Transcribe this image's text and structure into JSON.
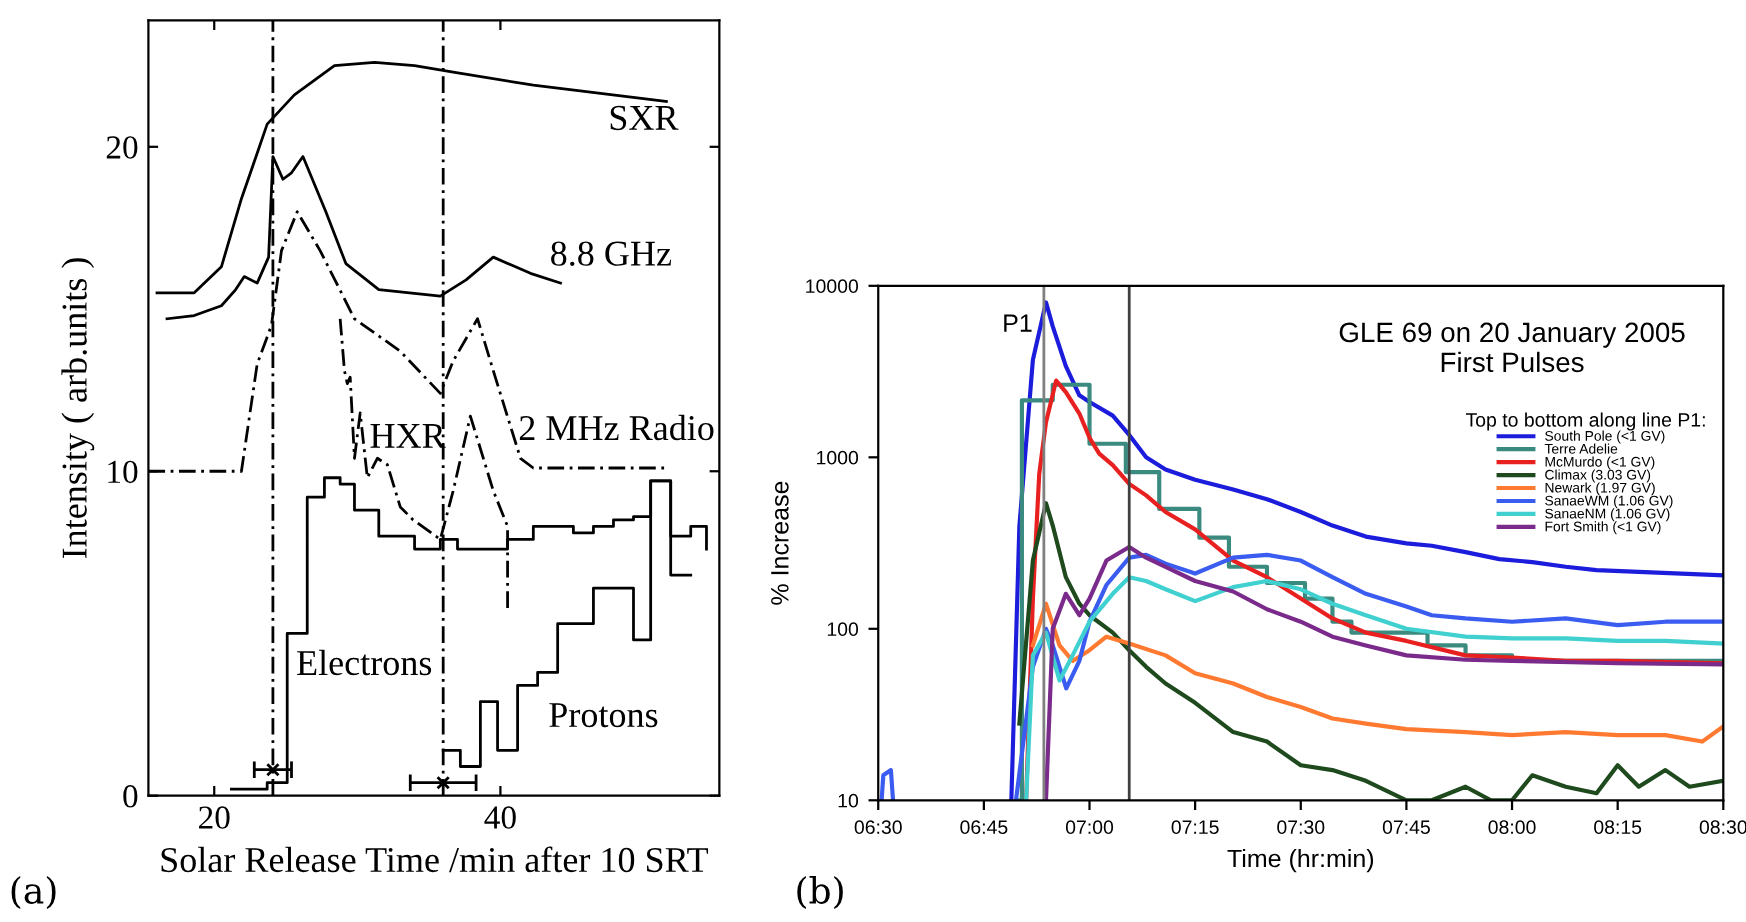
{
  "chart_data": [
    {
      "type": "line",
      "xlabel": "Solar Release Time /min after 10 SRT",
      "ylabel": "Intensity ( arb.units )",
      "xlim": [
        15.4,
        55.3
      ],
      "ylim": [
        0,
        23.9
      ],
      "xticks": [
        20,
        40
      ],
      "yticks": [
        0,
        10,
        20
      ],
      "series": [
        {
          "name": "SXR",
          "color": "#000000",
          "line_style": "solid",
          "x": [
            16.0,
            18.6,
            20.5,
            21.9,
            23.0,
            23.7,
            25.6,
            28.4,
            31.2,
            34.0,
            36.7,
            42.3,
            51.6
          ],
          "values": [
            15.5,
            15.5,
            16.3,
            18.4,
            19.8,
            20.7,
            21.6,
            22.5,
            22.6,
            22.5,
            22.3,
            21.9,
            21.4
          ]
        },
        {
          "name": "8.8 GHz",
          "color": "#000000",
          "line_style": "solid",
          "x": [
            16.7,
            18.6,
            20.5,
            21.5,
            22.1,
            23.0,
            23.8,
            24.1,
            24.8,
            25.4,
            26.2,
            27.8,
            29.2,
            31.5,
            35.8,
            37.6,
            39.5,
            42.1,
            44.2
          ],
          "values": [
            14.7,
            14.8,
            15.1,
            15.6,
            16.0,
            15.8,
            16.6,
            19.7,
            19.0,
            19.2,
            19.7,
            18.0,
            16.4,
            15.6,
            15.4,
            15.9,
            16.6,
            16.1,
            15.8
          ]
        },
        {
          "name": "2 MHz Radio",
          "color": "#000000",
          "line_style": "dashed",
          "x": [
            15.4,
            21.9,
            23.0,
            24.0,
            24.7,
            25.8,
            27.4,
            29.8,
            33.0,
            35.8,
            36.7,
            38.4,
            39.5,
            41.4,
            42.3,
            51.6
          ],
          "values": [
            10.0,
            10.0,
            13.3,
            14.5,
            16.8,
            18.0,
            16.8,
            14.7,
            13.7,
            12.4,
            13.4,
            14.7,
            13.1,
            10.4,
            10.1,
            10.1
          ]
        },
        {
          "name": "HXR",
          "color": "#000000",
          "line_style": "dashed",
          "x": [
            28.8,
            29.1,
            29.3,
            29.5,
            29.8,
            30.2,
            30.7,
            31.4,
            32.1,
            33.0,
            33.9,
            35.8,
            36.7,
            37.9,
            39.5,
            40.5,
            40.5
          ],
          "values": [
            14.7,
            13.1,
            12.7,
            12.9,
            10.4,
            11.8,
            9.8,
            10.4,
            10.2,
            8.9,
            8.5,
            7.9,
            9.4,
            11.7,
            9.4,
            8.3,
            5.7
          ]
        },
        {
          "name": "Electrons",
          "type": "step",
          "color": "#000000",
          "line_style": "solid",
          "x": [
            21.2,
            23.7,
            25.1,
            26.5,
            27.7,
            28.8,
            29.8,
            31.5,
            34.0,
            35.8,
            37.0,
            40.5,
            42.3,
            45.1,
            46.5,
            47.9,
            49.3,
            50.5,
            51.9,
            53.3,
            54.4
          ],
          "values": [
            0.2,
            0.4,
            5.0,
            9.2,
            9.8,
            9.6,
            8.8,
            8.0,
            7.6,
            7.9,
            7.6,
            7.9,
            8.3,
            8.1,
            8.3,
            8.5,
            8.6,
            9.7,
            8.0,
            8.3,
            7.6
          ]
        },
        {
          "name": "Protons",
          "type": "step",
          "color": "#000000",
          "line_style": "solid",
          "x": [
            36.0,
            37.2,
            38.6,
            39.8,
            41.2,
            42.6,
            44.0,
            46.5,
            49.3,
            50.5,
            51.9,
            53.3
          ],
          "values": [
            1.4,
            0.9,
            2.9,
            1.4,
            3.4,
            3.8,
            5.3,
            6.4,
            4.8,
            9.7,
            6.8,
            6.8
          ]
        },
        {
          "type": "scatter",
          "color": "#000000",
          "marker": "cross",
          "x": [
            24.1,
            36.0
          ],
          "values": [
            0.8,
            0.4
          ],
          "xerrors": [
            1.3,
            2.3
          ]
        }
      ],
      "ref_lines": [
        {
          "axis": "x",
          "value": 24.1,
          "line_style": "dashed",
          "color": "#000000"
        },
        {
          "axis": "x",
          "value": 36.0,
          "line_style": "dashed",
          "color": "#000000"
        }
      ],
      "annotations": [
        "(a)"
      ]
    },
    {
      "type": "line",
      "title": "GLE 69 on 20 January 2005\nFirst Pulses",
      "xlabel": "Time (hr:min)",
      "ylabel": "% Increase",
      "log": "y",
      "xlim": [
        6.5,
        8.5
      ],
      "ylim": [
        10,
        10000
      ],
      "xticks": [
        {
          "value": 6.5,
          "label": "06:30"
        },
        {
          "value": 6.75,
          "label": "06:45"
        },
        {
          "value": 7.0,
          "label": "07:00"
        },
        {
          "value": 7.25,
          "label": "07:15"
        },
        {
          "value": 7.5,
          "label": "07:30"
        },
        {
          "value": 7.75,
          "label": "07:45"
        },
        {
          "value": 8.0,
          "label": "08:00"
        },
        {
          "value": 8.25,
          "label": "08:15"
        },
        {
          "value": 8.5,
          "label": "08:30"
        }
      ],
      "yticks": [
        10,
        100,
        1000,
        10000
      ],
      "legend": "top right",
      "legend_title": "Top to bottom along line P1:",
      "series": [
        {
          "name": "South Pole (<1 GV)",
          "color": "#1c1cdc",
          "x": [
            6.815,
            6.834,
            6.866,
            6.897,
            6.913,
            6.944,
            6.976,
            7.0,
            7.055,
            7.094,
            7.134,
            7.18,
            7.25,
            7.34,
            7.42,
            7.5,
            7.575,
            7.654,
            7.75,
            7.81,
            7.89,
            7.97,
            8.048,
            8.127,
            8.2,
            8.3,
            8.5
          ],
          "values": [
            10,
            395,
            3700,
            8000,
            5800,
            3400,
            2300,
            2100,
            1750,
            1350,
            1000,
            850,
            740,
            650,
            570,
            480,
            400,
            345,
            315,
            305,
            280,
            255,
            245,
            230,
            220,
            215,
            205
          ]
        },
        {
          "name": "Terre Adelie",
          "color": "#3a8a80",
          "type": "step",
          "x": [
            6.834,
            6.84,
            6.913,
            7.0,
            7.086,
            7.165,
            7.26,
            7.33,
            7.42,
            7.51,
            7.575,
            7.62,
            7.8,
            7.89,
            8.0,
            8.5
          ],
          "values": [
            10,
            2150,
            2650,
            1200,
            820,
            500,
            340,
            230,
            185,
            150,
            110,
            95,
            80,
            70,
            65,
            65
          ]
        },
        {
          "name": "McMurdo (<1 GV)",
          "color": "#e82020",
          "x": [
            6.85,
            6.866,
            6.881,
            6.897,
            6.921,
            6.944,
            6.976,
            7.0,
            7.023,
            7.055,
            7.094,
            7.134,
            7.18,
            7.25,
            7.34,
            7.42,
            7.5,
            7.575,
            7.654,
            7.75,
            7.89,
            8.0,
            8.127,
            8.25,
            8.5
          ],
          "values": [
            10,
            150,
            800,
            1600,
            2800,
            2400,
            1800,
            1300,
            1050,
            900,
            700,
            600,
            480,
            380,
            250,
            200,
            150,
            115,
            95,
            85,
            70,
            68,
            65,
            65,
            63
          ]
        },
        {
          "name": "Climax (3.03 GV)",
          "color": "#1e4a1e",
          "x": [
            6.834,
            6.866,
            6.897,
            6.913,
            6.944,
            6.976,
            7.0,
            7.055,
            7.094,
            7.134,
            7.18,
            7.25,
            7.34,
            7.42,
            7.5,
            7.575,
            7.654,
            7.75,
            7.81,
            7.89,
            7.95,
            8.0,
            8.048,
            8.127,
            8.2,
            8.25,
            8.3,
            8.363,
            8.42,
            8.5
          ],
          "values": [
            28,
            250,
            540,
            400,
            200,
            140,
            120,
            95,
            75,
            60,
            48,
            37,
            25,
            22,
            16,
            15,
            13,
            10,
            10,
            12,
            10,
            10,
            14,
            12,
            11,
            16,
            12,
            15,
            12,
            13
          ]
        },
        {
          "name": "Newark (1.97 GV)",
          "color": "#ff7a30",
          "x": [
            6.866,
            6.897,
            6.929,
            6.96,
            7.0,
            7.04,
            7.094,
            7.18,
            7.25,
            7.34,
            7.42,
            7.5,
            7.575,
            7.654,
            7.75,
            7.89,
            8.0,
            8.127,
            8.25,
            8.363,
            8.45,
            8.5
          ],
          "values": [
            80,
            140,
            80,
            65,
            75,
            90,
            82,
            70,
            55,
            48,
            40,
            35,
            30,
            28,
            26,
            25,
            24,
            25,
            24,
            24,
            22,
            27
          ]
        },
        {
          "name": "SanaeWM (1.06 GV)",
          "color": "#3a5cf0",
          "x": [
            6.508,
            6.512,
            6.53,
            6.535,
            6.6,
            6.826,
            6.866,
            6.897,
            6.913,
            6.945,
            6.976,
            7.0,
            7.04,
            7.094,
            7.134,
            7.18,
            7.25,
            7.34,
            7.42,
            7.5,
            7.575,
            7.654,
            7.75,
            7.81,
            7.89,
            8.0,
            8.127,
            8.25,
            8.363,
            8.5
          ],
          "values": [
            10,
            14,
            15,
            10,
            null,
            10,
            60,
            100,
            80,
            45,
            65,
            110,
            180,
            260,
            270,
            240,
            210,
            260,
            270,
            250,
            200,
            160,
            135,
            120,
            115,
            110,
            115,
            105,
            110,
            110
          ]
        },
        {
          "name": "SanaeNM (1.06 GV)",
          "color": "#40d0d0",
          "x": [
            6.85,
            6.866,
            6.897,
            6.929,
            6.96,
            7.0,
            7.055,
            7.094,
            7.134,
            7.18,
            7.25,
            7.34,
            7.42,
            7.5,
            7.575,
            7.654,
            7.75,
            7.89,
            8.0,
            8.127,
            8.25,
            8.363,
            8.5
          ],
          "values": [
            10,
            70,
            95,
            50,
            70,
            110,
            160,
            200,
            190,
            170,
            145,
            175,
            190,
            170,
            140,
            120,
            100,
            90,
            88,
            88,
            85,
            85,
            82
          ]
        },
        {
          "name": "Fort Smith (<1 GV)",
          "color": "#7a2a8a",
          "x": [
            6.897,
            6.913,
            6.944,
            6.976,
            7.0,
            7.04,
            7.094,
            7.134,
            7.18,
            7.25,
            7.34,
            7.42,
            7.5,
            7.575,
            7.654,
            7.75,
            7.89,
            8.0,
            8.25,
            8.5
          ],
          "values": [
            10,
            100,
            160,
            120,
            150,
            250,
            300,
            260,
            230,
            190,
            165,
            130,
            110,
            90,
            80,
            70,
            66,
            65,
            63,
            62
          ]
        }
      ],
      "ref_lines": [
        {
          "axis": "x",
          "value": 6.892,
          "label": "P1",
          "color": "#808080"
        },
        {
          "axis": "x",
          "value": 7.094,
          "color": "#404040"
        }
      ],
      "annotations": [
        "(b)"
      ]
    }
  ]
}
